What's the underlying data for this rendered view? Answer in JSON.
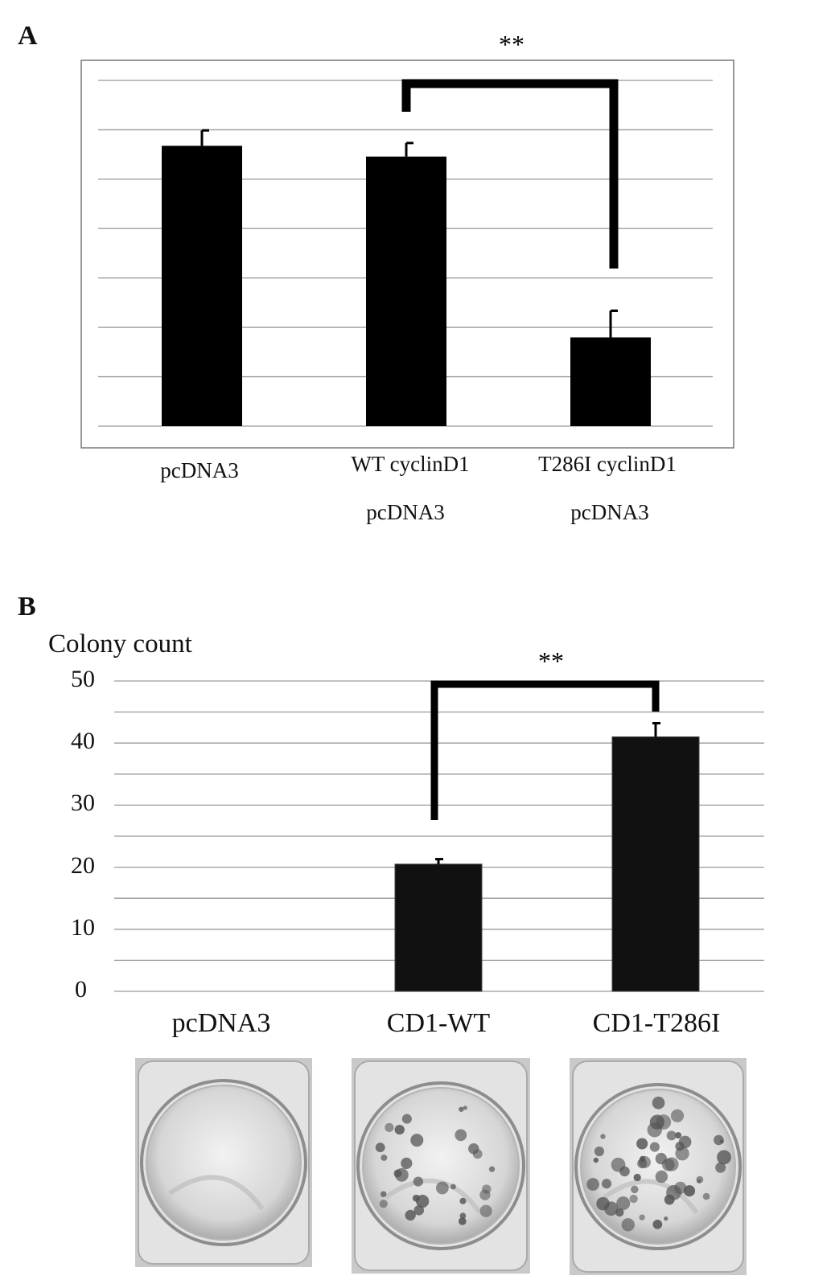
{
  "chart_data": [
    {
      "panel": "A",
      "type": "bar",
      "categories": [
        [
          "pcDNA3"
        ],
        [
          "WT cyclinD1",
          "pcDNA3"
        ],
        [
          "T286I cyclinD1",
          "pcDNA3"
        ]
      ],
      "values": [
        6.0,
        5.77,
        1.9
      ],
      "errors": [
        0.33,
        0.29,
        0.57
      ],
      "ylim": [
        0,
        7.4
      ],
      "gridlines": 8,
      "significance": {
        "from": 1,
        "to": 2,
        "label": "**"
      },
      "color": "#000000"
    },
    {
      "panel": "B",
      "type": "bar",
      "ylabel": "Colony count",
      "categories": [
        "pcDNA3",
        "CD1-WT",
        "CD1-T286I"
      ],
      "values": [
        0,
        20.5,
        41
      ],
      "errors": [
        0,
        0.8,
        2.2
      ],
      "ylim": [
        0,
        50
      ],
      "yticks": [
        "50",
        "40",
        "30",
        "20",
        "10",
        "0"
      ],
      "gridlines": 10,
      "significance": {
        "from": 1,
        "to": 2,
        "label": "**"
      },
      "color": "#111111"
    }
  ],
  "panels": {
    "a_label": "A",
    "b_label": "B"
  },
  "dishes": [
    {
      "name": "pcDNA3",
      "colonies": 0
    },
    {
      "name": "CD1-WT",
      "colonies": 30
    },
    {
      "name": "CD1-T286I",
      "colonies": 48
    }
  ]
}
